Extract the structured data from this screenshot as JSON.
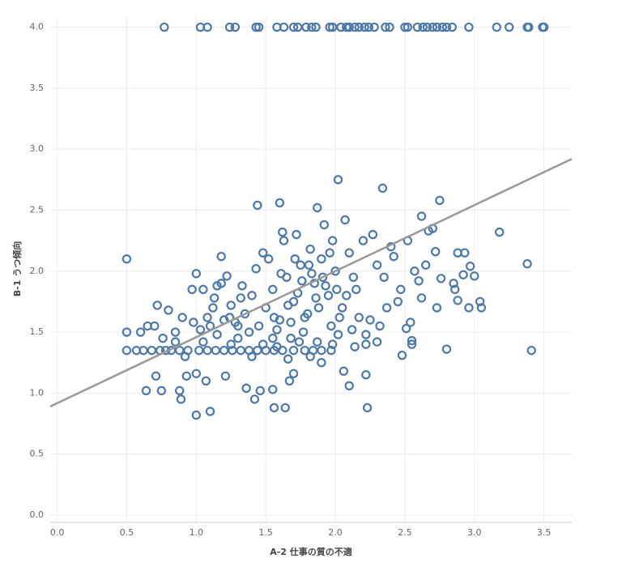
{
  "chart_data": {
    "type": "scatter",
    "x_label": "A-2 仕事の質の不適",
    "y_label": "B-1 うつ傾向",
    "xlim": [
      -0.05,
      3.7
    ],
    "ylim": [
      -0.06,
      4.09
    ],
    "xticks": [
      {
        "value": 0,
        "label": "0.0"
      },
      {
        "value": 0.5,
        "label": "0.5"
      },
      {
        "value": 1,
        "label": "1.0"
      },
      {
        "value": 1.5,
        "label": "1.5"
      },
      {
        "value": 2,
        "label": "2.0"
      },
      {
        "value": 2.5,
        "label": "2.5"
      },
      {
        "value": 3,
        "label": "3.0"
      },
      {
        "value": 3.5,
        "label": "3.5"
      }
    ],
    "yticks": [
      {
        "value": 0,
        "label": "0.0"
      },
      {
        "value": 0.5,
        "label": "0.5"
      },
      {
        "value": 1,
        "label": "1.0"
      },
      {
        "value": 1.5,
        "label": "1.5"
      },
      {
        "value": 2,
        "label": "2.0"
      },
      {
        "value": 2.5,
        "label": "2.5"
      },
      {
        "value": 3,
        "label": "3.0"
      },
      {
        "value": 3.5,
        "label": "3.5"
      },
      {
        "value": 4,
        "label": "4.0"
      }
    ],
    "grid": true,
    "trend_line": {
      "color": "#999999",
      "x": [
        -0.05,
        3.7
      ],
      "y": [
        0.89,
        2.92
      ]
    },
    "series": [
      {
        "color": "#4e79a7",
        "x": [
          0.77,
          1.03,
          1.08,
          1.24,
          1.28,
          1.43,
          1.45,
          1.58,
          1.63,
          1.7,
          1.73,
          1.79,
          1.83,
          1.86,
          1.96,
          1.98,
          2.04,
          2.08,
          2.1,
          2.14,
          2.17,
          2.21,
          2.24,
          2.28,
          2.36,
          2.39,
          2.5,
          2.52,
          2.59,
          2.63,
          2.66,
          2.7,
          2.73,
          2.77,
          2.8,
          2.84,
          2.96,
          3.16,
          3.25,
          3.38,
          3.39,
          3.49,
          3.5,
          0.5,
          0.5,
          0.5,
          0.57,
          0.64,
          0.72,
          0.71,
          0.75,
          0.88,
          0.89,
          1.0,
          1.1,
          0.93,
          1.0,
          1.07,
          1.21,
          1.36,
          1.42,
          1.46,
          1.55,
          1.56,
          1.64,
          1.7,
          1.67,
          2.1,
          2.22,
          2.23,
          2.48,
          2.8,
          3.41,
          3.38,
          3.18,
          3.05,
          3.04,
          2.96,
          3.0,
          2.97,
          2.93,
          2.88,
          2.75,
          2.62,
          2.34,
          2.02,
          1.44,
          1.6,
          1.87,
          2.92,
          2.86,
          2.88,
          2.73,
          2.76,
          2.85,
          2.55,
          2.55,
          2.51,
          2.54,
          2.67,
          2.65,
          2.7,
          2.72,
          0.62,
          0.68,
          0.74,
          0.78,
          0.82,
          0.88,
          0.94,
          1.02,
          1.08,
          1.14,
          1.2,
          1.26,
          1.32,
          1.38,
          1.44,
          1.5,
          1.56,
          1.62,
          1.7,
          1.78,
          1.84,
          1.9,
          1.97,
          0.6,
          0.65,
          0.7,
          0.76,
          0.85,
          0.9,
          0.98,
          1.05,
          1.1,
          1.15,
          1.2,
          1.25,
          1.3,
          1.35,
          1.4,
          1.45,
          1.5,
          1.55,
          1.6,
          1.65,
          1.7,
          1.75,
          1.8,
          1.85,
          1.9,
          1.95,
          2.0,
          2.05,
          2.1,
          2.15,
          2.2,
          2.25,
          2.3,
          2.35,
          2.4,
          2.45,
          1.15,
          1.22,
          1.28,
          1.33,
          1.38,
          1.43,
          1.48,
          1.52,
          1.58,
          1.63,
          1.68,
          1.72,
          1.77,
          1.82,
          1.87,
          1.92,
          1.97,
          2.02,
          2.07,
          2.12,
          2.17,
          2.22,
          2.27,
          2.32,
          2.37,
          2.42,
          2.47,
          2.52,
          2.57,
          2.62,
          2.6,
          1.0,
          1.05,
          1.12,
          1.18,
          1.25,
          1.32,
          1.4,
          1.48,
          1.55,
          1.62,
          1.68,
          1.73,
          1.78,
          1.83,
          1.88,
          1.93,
          1.98,
          2.03,
          2.08,
          2.13,
          1.58,
          1.66,
          1.74,
          1.82,
          1.9,
          1.98,
          2.06,
          2.14,
          2.22,
          2.3,
          0.8,
          0.85,
          0.92,
          0.97,
          1.03,
          1.08,
          1.13,
          1.18,
          1.24,
          1.3,
          1.76,
          1.81,
          1.86,
          1.91,
          1.96,
          2.01,
          1.71,
          1.66,
          1.61,
          1.56
        ],
        "values": [
          4,
          4,
          4,
          4,
          4,
          4,
          4,
          4,
          4,
          4,
          4,
          4,
          4,
          4,
          4,
          4,
          4,
          4,
          4,
          4,
          4,
          4,
          4,
          4,
          4,
          4,
          4,
          4,
          4,
          4,
          4,
          4,
          4,
          4,
          4,
          4,
          4,
          4,
          4,
          4,
          4,
          4,
          4,
          2.1,
          1.5,
          1.35,
          1.35,
          1.02,
          1.72,
          1.14,
          1.02,
          1.02,
          0.95,
          0.82,
          0.85,
          1.14,
          1.16,
          1.1,
          1.14,
          1.04,
          0.95,
          1.02,
          1.03,
          0.88,
          0.88,
          1.16,
          1.1,
          1.06,
          1.15,
          0.88,
          1.31,
          1.36,
          1.35,
          2.06,
          2.32,
          1.7,
          1.75,
          1.7,
          1.96,
          2.04,
          2.15,
          2.15,
          2.58,
          2.45,
          2.68,
          2.75,
          2.54,
          2.56,
          2.52,
          1.97,
          1.85,
          1.76,
          1.7,
          1.94,
          1.9,
          1.4,
          1.43,
          1.53,
          1.58,
          2.33,
          2.05,
          2.35,
          2.16,
          1.35,
          1.35,
          1.35,
          1.35,
          1.35,
          1.35,
          1.35,
          1.35,
          1.35,
          1.35,
          1.35,
          1.35,
          1.35,
          1.35,
          1.35,
          1.35,
          1.35,
          1.35,
          1.35,
          1.35,
          1.35,
          1.35,
          1.35,
          1.5,
          1.55,
          1.55,
          1.45,
          1.5,
          1.62,
          1.58,
          1.42,
          1.55,
          1.48,
          1.6,
          1.72,
          1.45,
          1.65,
          1.8,
          1.55,
          1.7,
          1.85,
          1.6,
          1.95,
          1.75,
          2.05,
          1.65,
          1.9,
          2.1,
          1.8,
          2.0,
          1.7,
          2.15,
          1.85,
          2.25,
          1.6,
          2.05,
          1.95,
          2.2,
          1.75,
          1.88,
          1.96,
          1.58,
          1.88,
          1.5,
          2.02,
          1.4,
          2.1,
          1.52,
          2.25,
          1.45,
          2.3,
          1.5,
          2.18,
          1.42,
          2.38,
          1.55,
          1.48,
          2.42,
          1.52,
          1.62,
          1.48,
          2.3,
          1.55,
          1.7,
          2.12,
          1.85,
          2.25,
          2.0,
          1.78,
          1.92,
          1.98,
          1.85,
          1.7,
          2.12,
          1.4,
          1.78,
          1.3,
          2.15,
          1.45,
          2.32,
          1.58,
          1.82,
          1.62,
          1.98,
          1.7,
          1.88,
          2.25,
          1.62,
          1.8,
          1.95,
          1.38,
          1.28,
          1.42,
          1.3,
          1.25,
          1.4,
          1.18,
          1.38,
          1.4,
          1.42,
          1.68,
          1.42,
          1.3,
          1.85,
          1.52,
          1.62,
          1.78,
          1.9,
          1.62,
          1.55,
          1.92,
          2.05,
          1.78,
          1.95,
          2.15,
          1.85,
          2.1,
          1.72,
          1.98,
          1.62
        ]
      }
    ]
  }
}
